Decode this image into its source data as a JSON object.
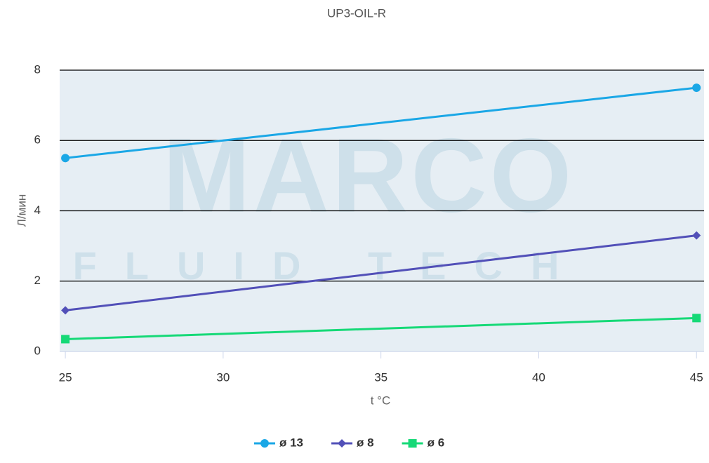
{
  "chart_data": {
    "type": "line",
    "title": "UP3-OIL-R",
    "x_label": "t °C",
    "y_label": "Л/мин",
    "watermark": "MARCO",
    "watermark_sub": "FLUID TECH",
    "x": [
      25,
      45
    ],
    "series": [
      {
        "name": "ø 13",
        "color": "#1aa7e6",
        "marker": "circle",
        "values": [
          5.5,
          7.5
        ]
      },
      {
        "name": "ø 8",
        "color": "#5250b8",
        "marker": "diamond",
        "values": [
          1.17,
          3.3
        ]
      },
      {
        "name": "ø 6",
        "color": "#16d977",
        "marker": "square",
        "values": [
          0.35,
          0.95
        ]
      }
    ],
    "xlim": [
      24.82,
      45.24
    ],
    "xticks": [
      25,
      30,
      35,
      40,
      45
    ],
    "ylim": [
      0,
      8
    ],
    "yticks": [
      0,
      2,
      4,
      6,
      8
    ],
    "grid": true,
    "legend": "bottom"
  }
}
